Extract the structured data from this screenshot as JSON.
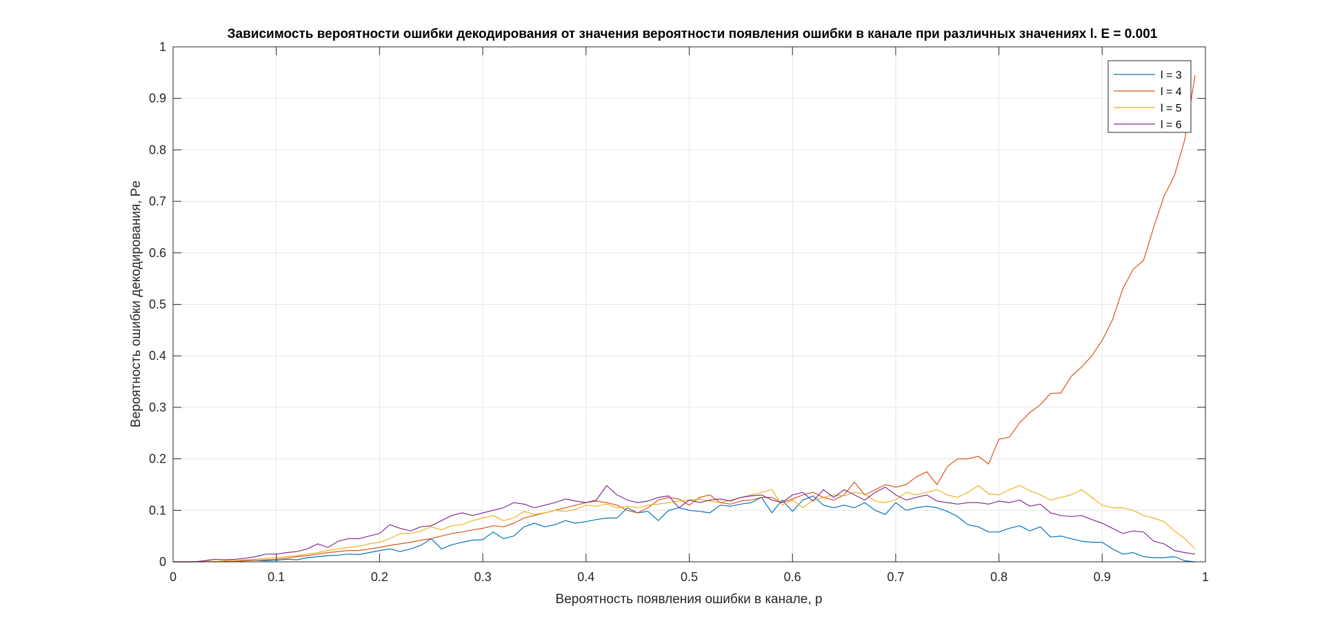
{
  "chart_data": {
    "type": "line",
    "title": "Зависимость вероятности ошибки декодирования от значения вероятности появления ошибки в канале при различных значениях l. E = 0.001",
    "xlabel": "Вероятность появления ошибки в канале, p",
    "ylabel": "Вероятность ошибки декодирования, Pe",
    "xlim": [
      0,
      1
    ],
    "ylim": [
      0,
      1
    ],
    "xticks": [
      0,
      0.1,
      0.2,
      0.3,
      0.4,
      0.5,
      0.6,
      0.7,
      0.8,
      0.9,
      1
    ],
    "xtick_labels": [
      "0",
      "0.1",
      "0.2",
      "0.3",
      "0.4",
      "0.5",
      "0.6",
      "0.7",
      "0.8",
      "0.9",
      "1"
    ],
    "yticks": [
      0,
      0.1,
      0.2,
      0.3,
      0.4,
      0.5,
      0.6,
      0.7,
      0.8,
      0.9,
      1
    ],
    "ytick_labels": [
      "0",
      "0.1",
      "0.2",
      "0.3",
      "0.4",
      "0.5",
      "0.6",
      "0.7",
      "0.8",
      "0.9",
      "1"
    ],
    "grid": true,
    "legend_position": "top-right",
    "x": [
      0.0,
      0.01,
      0.02,
      0.03,
      0.04,
      0.05,
      0.06,
      0.07,
      0.08,
      0.09,
      0.1,
      0.11,
      0.12,
      0.13,
      0.14,
      0.15,
      0.16,
      0.17,
      0.18,
      0.19,
      0.2,
      0.21,
      0.22,
      0.23,
      0.24,
      0.25,
      0.26,
      0.27,
      0.28,
      0.29,
      0.3,
      0.31,
      0.32,
      0.33,
      0.34,
      0.35,
      0.36,
      0.37,
      0.38,
      0.39,
      0.4,
      0.41,
      0.42,
      0.43,
      0.44,
      0.45,
      0.46,
      0.47,
      0.48,
      0.49,
      0.5,
      0.51,
      0.52,
      0.53,
      0.54,
      0.55,
      0.56,
      0.57,
      0.58,
      0.59,
      0.6,
      0.61,
      0.62,
      0.63,
      0.64,
      0.65,
      0.66,
      0.67,
      0.68,
      0.69,
      0.7,
      0.71,
      0.72,
      0.73,
      0.74,
      0.75,
      0.76,
      0.77,
      0.78,
      0.79,
      0.8,
      0.81,
      0.82,
      0.83,
      0.84,
      0.85,
      0.86,
      0.87,
      0.88,
      0.89,
      0.9,
      0.91,
      0.92,
      0.93,
      0.94,
      0.95,
      0.96,
      0.97,
      0.98,
      0.99
    ],
    "series": [
      {
        "name": "l = 3",
        "color": "#0072BD",
        "values": [
          0,
          0,
          0,
          0.001,
          0.001,
          0,
          0.001,
          0.002,
          0.003,
          0.002,
          0.003,
          0.005,
          0.004,
          0.008,
          0.01,
          0.012,
          0.013,
          0.015,
          0.014,
          0.018,
          0.022,
          0.025,
          0.02,
          0.025,
          0.032,
          0.045,
          0.025,
          0.033,
          0.038,
          0.042,
          0.043,
          0.058,
          0.045,
          0.05,
          0.068,
          0.075,
          0.068,
          0.072,
          0.08,
          0.075,
          0.078,
          0.082,
          0.085,
          0.085,
          0.105,
          0.095,
          0.098,
          0.08,
          0.1,
          0.105,
          0.1,
          0.098,
          0.095,
          0.11,
          0.108,
          0.112,
          0.115,
          0.125,
          0.095,
          0.12,
          0.098,
          0.12,
          0.128,
          0.11,
          0.105,
          0.11,
          0.105,
          0.115,
          0.1,
          0.092,
          0.115,
          0.1,
          0.105,
          0.108,
          0.105,
          0.098,
          0.088,
          0.072,
          0.068,
          0.058,
          0.058,
          0.065,
          0.07,
          0.06,
          0.068,
          0.048,
          0.05,
          0.045,
          0.04,
          0.038,
          0.038,
          0.025,
          0.015,
          0.018,
          0.01,
          0.008,
          0.008,
          0.01,
          0.002,
          0
        ]
      },
      {
        "name": "l = 4",
        "color": "#D95319",
        "values": [
          0,
          0,
          0,
          0,
          0.001,
          0.001,
          0.001,
          0.002,
          0.003,
          0.004,
          0.005,
          0.007,
          0.01,
          0.012,
          0.015,
          0.018,
          0.02,
          0.022,
          0.022,
          0.025,
          0.028,
          0.032,
          0.035,
          0.038,
          0.042,
          0.045,
          0.05,
          0.055,
          0.058,
          0.062,
          0.065,
          0.07,
          0.068,
          0.075,
          0.085,
          0.09,
          0.095,
          0.1,
          0.105,
          0.11,
          0.115,
          0.118,
          0.115,
          0.11,
          0.1,
          0.095,
          0.105,
          0.12,
          0.125,
          0.122,
          0.11,
          0.125,
          0.13,
          0.115,
          0.112,
          0.118,
          0.12,
          0.125,
          0.125,
          0.115,
          0.122,
          0.13,
          0.135,
          0.125,
          0.12,
          0.13,
          0.155,
          0.13,
          0.14,
          0.15,
          0.145,
          0.15,
          0.165,
          0.175,
          0.15,
          0.185,
          0.2,
          0.2,
          0.205,
          0.19,
          0.238,
          0.242,
          0.27,
          0.29,
          0.305,
          0.327,
          0.328,
          0.36,
          0.378,
          0.4,
          0.43,
          0.47,
          0.53,
          0.568,
          0.585,
          0.65,
          0.71,
          0.75,
          0.82,
          0.945
        ]
      },
      {
        "name": "l = 5",
        "color": "#EDB120",
        "values": [
          0,
          0,
          0,
          0.001,
          0.001,
          0.002,
          0.003,
          0.004,
          0.005,
          0.007,
          0.008,
          0.01,
          0.012,
          0.015,
          0.018,
          0.022,
          0.025,
          0.028,
          0.03,
          0.035,
          0.038,
          0.045,
          0.055,
          0.055,
          0.06,
          0.068,
          0.062,
          0.07,
          0.072,
          0.08,
          0.085,
          0.09,
          0.08,
          0.085,
          0.098,
          0.092,
          0.095,
          0.1,
          0.098,
          0.102,
          0.11,
          0.108,
          0.112,
          0.105,
          0.108,
          0.105,
          0.11,
          0.112,
          0.115,
          0.118,
          0.12,
          0.122,
          0.118,
          0.115,
          0.12,
          0.125,
          0.13,
          0.135,
          0.14,
          0.11,
          0.12,
          0.105,
          0.12,
          0.125,
          0.13,
          0.128,
          0.135,
          0.132,
          0.118,
          0.115,
          0.12,
          0.135,
          0.13,
          0.135,
          0.14,
          0.13,
          0.125,
          0.135,
          0.148,
          0.132,
          0.13,
          0.14,
          0.148,
          0.138,
          0.13,
          0.12,
          0.125,
          0.13,
          0.14,
          0.125,
          0.11,
          0.105,
          0.105,
          0.1,
          0.09,
          0.085,
          0.078,
          0.06,
          0.045,
          0.025
        ]
      },
      {
        "name": "l = 6",
        "color": "#7E2F8E",
        "values": [
          0,
          0,
          0,
          0.002,
          0.005,
          0.004,
          0.005,
          0.007,
          0.01,
          0.015,
          0.015,
          0.018,
          0.02,
          0.025,
          0.035,
          0.028,
          0.04,
          0.045,
          0.045,
          0.05,
          0.055,
          0.072,
          0.065,
          0.06,
          0.068,
          0.07,
          0.08,
          0.09,
          0.095,
          0.09,
          0.095,
          0.1,
          0.105,
          0.115,
          0.112,
          0.105,
          0.11,
          0.115,
          0.122,
          0.118,
          0.115,
          0.12,
          0.148,
          0.13,
          0.12,
          0.115,
          0.118,
          0.125,
          0.128,
          0.105,
          0.12,
          0.115,
          0.12,
          0.122,
          0.118,
          0.125,
          0.128,
          0.13,
          0.12,
          0.115,
          0.13,
          0.135,
          0.118,
          0.14,
          0.125,
          0.14,
          0.13,
          0.12,
          0.135,
          0.145,
          0.13,
          0.12,
          0.125,
          0.13,
          0.118,
          0.115,
          0.112,
          0.115,
          0.115,
          0.112,
          0.118,
          0.115,
          0.12,
          0.108,
          0.112,
          0.095,
          0.09,
          0.088,
          0.09,
          0.082,
          0.075,
          0.065,
          0.055,
          0.06,
          0.058,
          0.04,
          0.035,
          0.022,
          0.018,
          0.015
        ]
      }
    ]
  },
  "style": {
    "axes_color": "#262626",
    "grid_color": "#e6e6e6",
    "background": "#ffffff"
  }
}
